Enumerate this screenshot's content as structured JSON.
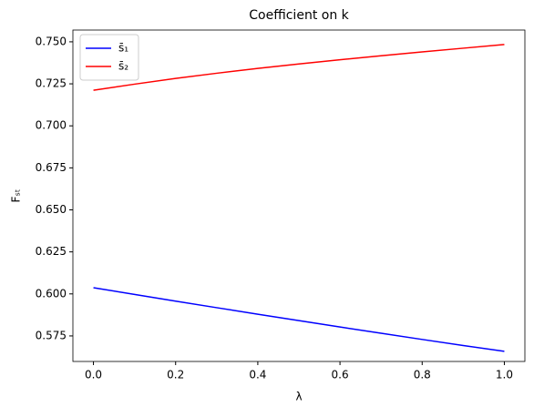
{
  "chart_data": {
    "type": "line",
    "title": "Coefficient on k",
    "xlabel": "λ",
    "ylabel": "Fₛₜ",
    "x": [
      0.0,
      0.1,
      0.2,
      0.3,
      0.4,
      0.5,
      0.6,
      0.7,
      0.8,
      0.9,
      1.0
    ],
    "series": [
      {
        "name": "s̄₁",
        "color": "#0000ff",
        "values": [
          0.6037,
          0.5997,
          0.5957,
          0.5918,
          0.5879,
          0.5841,
          0.5803,
          0.5766,
          0.5729,
          0.5693,
          0.5658
        ]
      },
      {
        "name": "s̄₂",
        "color": "#ff0000",
        "values": [
          0.7212,
          0.7248,
          0.7282,
          0.7313,
          0.7342,
          0.7368,
          0.7393,
          0.7417,
          0.744,
          0.7462,
          0.7484
        ]
      }
    ],
    "xlim": [
      -0.05,
      1.05
    ],
    "xticks": [
      {
        "value": 0,
        "label": "0.0"
      },
      {
        "value": 0.2,
        "label": "0.2"
      },
      {
        "value": 0.4,
        "label": "0.4"
      },
      {
        "value": 0.6,
        "label": "0.6"
      },
      {
        "value": 0.8,
        "label": "0.8"
      },
      {
        "value": 1,
        "label": "1.0"
      }
    ],
    "ylim": [
      0.5598,
      0.757
    ],
    "yticks": [
      {
        "value": 0.575,
        "label": "0.575"
      },
      {
        "value": 0.6,
        "label": "0.600"
      },
      {
        "value": 0.625,
        "label": "0.625"
      },
      {
        "value": 0.65,
        "label": "0.650"
      },
      {
        "value": 0.675,
        "label": "0.675"
      },
      {
        "value": 0.7,
        "label": "0.700"
      },
      {
        "value": 0.725,
        "label": "0.725"
      },
      {
        "value": 0.75,
        "label": "0.750"
      }
    ],
    "legend": "upper left"
  }
}
